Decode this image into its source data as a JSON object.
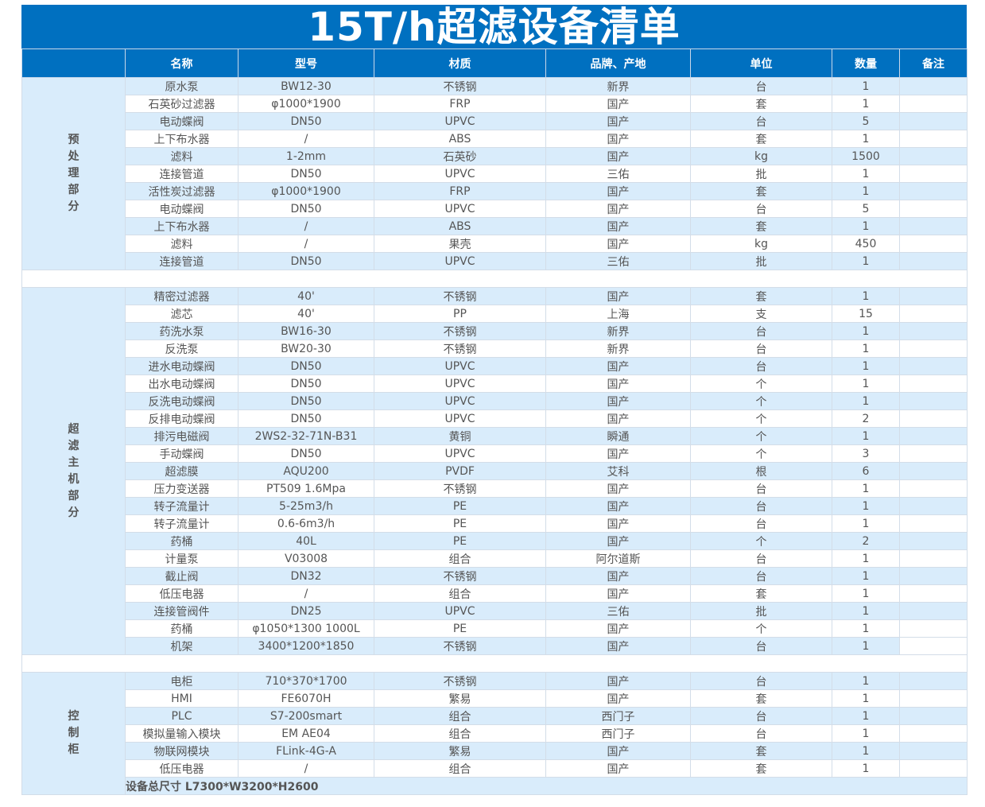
{
  "title": "15T/h超滤设备清单",
  "headers": [
    "",
    "名称",
    "型号",
    "材质",
    "品牌、产地",
    "单位",
    "数量",
    "备注"
  ],
  "sections": [
    {
      "label": "预处理部分",
      "rows": [
        [
          "原水泵",
          "BW12-30",
          "不锈钢",
          "新界",
          "台",
          "1",
          ""
        ],
        [
          "石英砂过滤器",
          "φ1000*1900",
          "FRP",
          "国产",
          "套",
          "1",
          ""
        ],
        [
          "电动蝶阀",
          "DN50",
          "UPVC",
          "国产",
          "台",
          "5",
          ""
        ],
        [
          "上下布水器",
          "/",
          "ABS",
          "国产",
          "套",
          "1",
          ""
        ],
        [
          "滤料",
          "1-2mm",
          "石英砂",
          "国产",
          "kg",
          "1500",
          ""
        ],
        [
          "连接管道",
          "DN50",
          "UPVC",
          "三佑",
          "批",
          "1",
          ""
        ],
        [
          "活性炭过滤器",
          "φ1000*1900",
          "FRP",
          "国产",
          "套",
          "1",
          ""
        ],
        [
          "电动蝶阀",
          "DN50",
          "UPVC",
          "国产",
          "台",
          "5",
          ""
        ],
        [
          "上下布水器",
          "/",
          "ABS",
          "国产",
          "套",
          "1",
          ""
        ],
        [
          "滤料",
          "/",
          "果壳",
          "国产",
          "kg",
          "450",
          ""
        ],
        [
          "连接管道",
          "DN50",
          "UPVC",
          "三佑",
          "批",
          "1",
          ""
        ]
      ]
    },
    {
      "label": "超滤主机部分",
      "rows": [
        [
          "精密过滤器",
          "40'",
          "不锈钢",
          "国产",
          "套",
          "1",
          ""
        ],
        [
          "滤芯",
          "40'",
          "PP",
          "上海",
          "支",
          "15",
          ""
        ],
        [
          "药洗水泵",
          "BW16-30",
          "不锈钢",
          "新界",
          "台",
          "1",
          ""
        ],
        [
          "反洗泵",
          "BW20-30",
          "不锈钢",
          "新界",
          "台",
          "1",
          ""
        ],
        [
          "进水电动蝶阀",
          "DN50",
          "UPVC",
          "国产",
          "台",
          "1",
          ""
        ],
        [
          "出水电动蝶阀",
          "DN50",
          "UPVC",
          "国产",
          "个",
          "1",
          ""
        ],
        [
          "反洗电动蝶阀",
          "DN50",
          "UPVC",
          "国产",
          "个",
          "1",
          ""
        ],
        [
          "反排电动蝶阀",
          "DN50",
          "UPVC",
          "国产",
          "个",
          "2",
          ""
        ],
        [
          "排污电磁阀",
          "2WS2-32-71N-B31",
          "黄铜",
          "瞬通",
          "个",
          "1",
          ""
        ],
        [
          "手动蝶阀",
          "DN50",
          "UPVC",
          "国产",
          "个",
          "3",
          ""
        ],
        [
          "超滤膜",
          "AQU200",
          "PVDF",
          "艾科",
          "根",
          "6",
          ""
        ],
        [
          "压力变送器",
          "PT509 1.6Mpa",
          "不锈钢",
          "国产",
          "台",
          "1",
          ""
        ],
        [
          "转子流量计",
          "5-25m3/h",
          "PE",
          "国产",
          "台",
          "1",
          ""
        ],
        [
          "转子流量计",
          "0.6-6m3/h",
          "PE",
          "国产",
          "台",
          "1",
          ""
        ],
        [
          "药桶",
          "40L",
          "PE",
          "国产",
          "个",
          "2",
          ""
        ],
        [
          "计量泵",
          "V03008",
          "组合",
          "阿尔道斯",
          "台",
          "1",
          ""
        ],
        [
          "截止阀",
          "DN32",
          "不锈钢",
          "国产",
          "台",
          "1",
          ""
        ],
        [
          "低压电器",
          "/",
          "组合",
          "国产",
          "套",
          "1",
          ""
        ],
        [
          "连接管阀件",
          "DN25",
          "UPVC",
          "三佑",
          "批",
          "1",
          ""
        ],
        [
          "药桶",
          "φ1050*1300 1000L",
          "PE",
          "国产",
          "个",
          "1",
          ""
        ],
        [
          "机架",
          "3400*1200*1850",
          "不锈钢",
          "国产",
          "台",
          "1",
          ""
        ]
      ]
    },
    {
      "label": "控制柜",
      "rows": [
        [
          "电柜",
          "710*370*1700",
          "不锈钢",
          "国产",
          "台",
          "1",
          ""
        ],
        [
          "HMI",
          "FE6070H",
          "繁易",
          "国产",
          "套",
          "1",
          ""
        ],
        [
          "PLC",
          "S7-200smart",
          "组合",
          "西门子",
          "台",
          "1",
          ""
        ],
        [
          "模拟量输入模块",
          "EM AE04",
          "组合",
          "西门子",
          "台",
          "1",
          ""
        ],
        [
          "物联网模块",
          "FLink-4G-A",
          "繁易",
          "国产",
          "套",
          "1",
          ""
        ],
        [
          "低压电器",
          "/",
          "组合",
          "国产",
          "套",
          "1",
          ""
        ]
      ]
    }
  ],
  "footer": "设备总尺寸 L7300*W3200*H2600"
}
